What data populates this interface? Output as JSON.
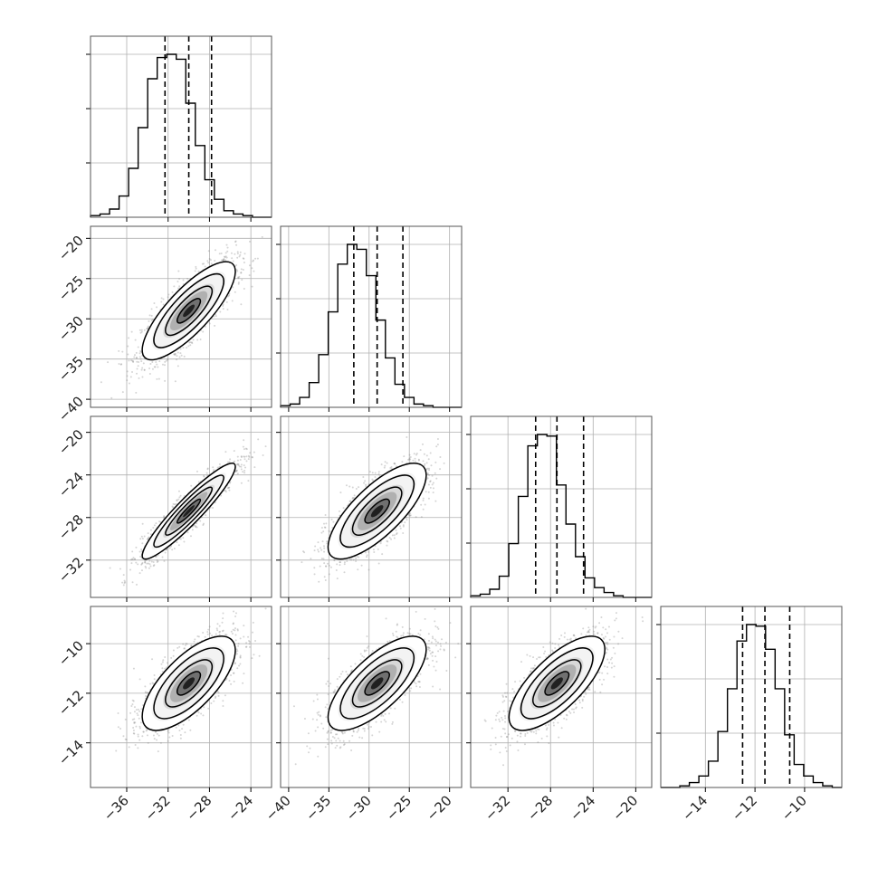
{
  "chart_data": {
    "type": "corner",
    "title": "",
    "n_params": 4,
    "param_labels": [
      "",
      "",
      "",
      ""
    ],
    "param_stats": [
      {
        "median": -30.0,
        "q16": -32.3,
        "q84": -27.8
      },
      {
        "median": -29.0,
        "q16": -31.9,
        "q84": -25.8
      },
      {
        "median": -27.4,
        "q16": -29.4,
        "q84": -24.9
      },
      {
        "median": -11.6,
        "q16": -12.5,
        "q84": -10.6
      }
    ],
    "correlations": [
      {
        "i": 1,
        "j": 0,
        "rho": 0.8
      },
      {
        "i": 2,
        "j": 0,
        "rho": 0.93
      },
      {
        "i": 2,
        "j": 1,
        "rho": 0.75
      },
      {
        "i": 3,
        "j": 0,
        "rho": 0.7
      },
      {
        "i": 3,
        "j": 1,
        "rho": 0.72
      },
      {
        "i": 3,
        "j": 2,
        "rho": 0.72
      }
    ],
    "axis_ranges": [
      [
        -39.5,
        -22
      ],
      [
        -41,
        -18.5
      ],
      [
        -35.5,
        -18.5
      ],
      [
        -15.8,
        -8.5
      ]
    ],
    "x_ticks": [
      {
        "values": [
          -36,
          -32,
          -28,
          -24
        ],
        "labels": [
          "−36",
          "−32",
          "−28",
          "−24"
        ]
      },
      {
        "values": [
          -40,
          -35,
          -30,
          -25,
          -20
        ],
        "labels": [
          "−40",
          "−35",
          "−30",
          "−25",
          "−20"
        ]
      },
      {
        "values": [
          -32,
          -28,
          -24,
          -20
        ],
        "labels": [
          "−32",
          "−28",
          "−24",
          "−20"
        ]
      },
      {
        "values": [
          -14,
          -12,
          -10
        ],
        "labels": [
          "−14",
          "−12",
          "−10"
        ]
      }
    ],
    "y_ticks": [
      null,
      {
        "values": [
          -20,
          -25,
          -30,
          -35,
          -40
        ],
        "labels": [
          "−20",
          "−25",
          "−30",
          "−35",
          "−40"
        ]
      },
      {
        "values": [
          -20,
          -24,
          -28,
          -32
        ],
        "labels": [
          "−20",
          "−24",
          "−28",
          "−32"
        ]
      },
      {
        "values": [
          -10,
          -12,
          -14
        ],
        "labels": [
          "−10",
          "−12",
          "−14"
        ]
      }
    ],
    "histograms": [
      [
        1,
        2,
        5,
        13,
        30,
        55,
        85,
        98,
        100,
        97,
        70,
        44,
        23,
        11,
        4,
        2,
        1,
        0,
        0
      ],
      [
        1,
        2,
        6,
        15,
        32,
        58,
        87,
        99,
        96,
        80,
        53,
        30,
        14,
        6,
        2,
        1,
        0,
        0,
        0
      ],
      [
        1,
        2,
        5,
        13,
        33,
        62,
        93,
        100,
        99,
        69,
        45,
        25,
        12,
        6,
        3,
        1,
        0,
        0,
        0
      ],
      [
        0,
        0,
        1,
        3,
        7,
        16,
        34,
        60,
        89,
        99,
        98,
        84,
        60,
        32,
        14,
        7,
        3,
        1,
        0
      ]
    ],
    "grid": true,
    "line_color": "#000000",
    "scatter_color": "#888888",
    "background": "#ffffff"
  }
}
